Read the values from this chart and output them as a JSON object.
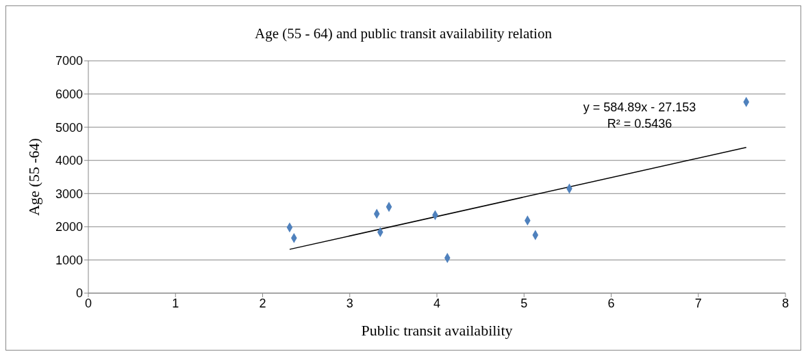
{
  "chart_data": {
    "type": "scatter",
    "title": "Age (55 - 64) and public transit availability relation",
    "xlabel": "Public transit availability",
    "ylabel": "Age (55 -64)",
    "annotations": [
      "y = 584.89x - 27.153",
      "R² = 0.5436"
    ],
    "x": [
      2.31,
      2.36,
      3.31,
      3.35,
      3.45,
      3.98,
      4.12,
      5.04,
      5.13,
      5.52,
      7.55
    ],
    "series": [
      {
        "color": "#4f81bd",
        "marker": "diamond",
        "values": [
          1980,
          1660,
          2390,
          1840,
          2600,
          2350,
          1060,
          2190,
          1750,
          3150,
          5760
        ]
      },
      {
        "type": "line",
        "color": "#000000",
        "x": [
          2.31,
          7.55
        ],
        "values": [
          1320,
          4390
        ]
      }
    ],
    "xlim": [
      0,
      8
    ],
    "xticks": [
      0,
      1,
      2,
      3,
      4,
      5,
      6,
      7,
      8
    ],
    "ylim": [
      0,
      7000
    ],
    "yticks": [
      0,
      1000,
      2000,
      3000,
      4000,
      5000,
      6000,
      7000
    ],
    "grid": "y"
  }
}
